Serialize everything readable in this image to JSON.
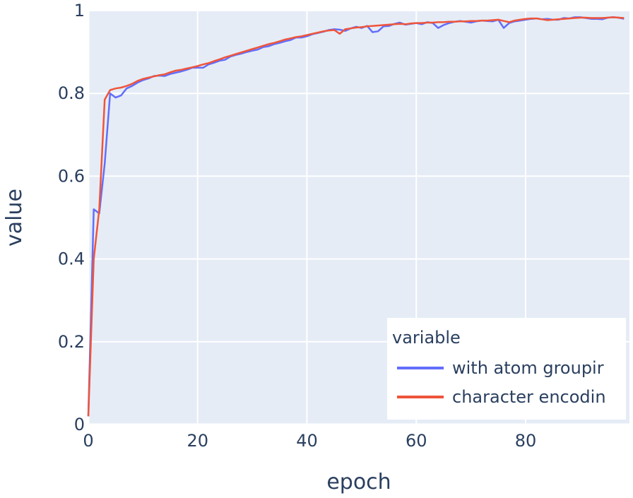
{
  "chart_data": {
    "type": "line",
    "xlabel": "epoch",
    "ylabel": "value",
    "xlim": [
      0,
      99
    ],
    "ylim": [
      0,
      1
    ],
    "xticks": [
      0,
      20,
      40,
      60,
      80
    ],
    "xtick_labels": [
      "0",
      "20",
      "40",
      "60",
      "80"
    ],
    "yticks": [
      0,
      0.2,
      0.4,
      0.6,
      0.8,
      1
    ],
    "ytick_labels": [
      "0",
      "0.2",
      "0.4",
      "0.6",
      "0.8",
      "1"
    ],
    "grid": true,
    "plot_background": "#e5ecf6",
    "grid_color": "#ffffff",
    "legend": {
      "title": "variable",
      "placement": "bottom-right"
    },
    "series": [
      {
        "name": "with atom groupir",
        "color": "#636efa",
        "x": [
          0,
          1,
          2,
          3,
          4,
          5,
          6,
          7,
          8,
          9,
          10,
          11,
          12,
          13,
          14,
          15,
          16,
          17,
          18,
          19,
          20,
          21,
          22,
          23,
          24,
          25,
          26,
          27,
          28,
          29,
          30,
          31,
          32,
          33,
          34,
          35,
          36,
          37,
          38,
          39,
          40,
          41,
          42,
          43,
          44,
          45,
          46,
          47,
          48,
          49,
          50,
          51,
          52,
          53,
          54,
          55,
          56,
          57,
          58,
          59,
          60,
          61,
          62,
          63,
          64,
          65,
          66,
          67,
          68,
          69,
          70,
          71,
          72,
          73,
          74,
          75,
          76,
          77,
          78,
          79,
          80,
          81,
          82,
          83,
          84,
          85,
          86,
          87,
          88,
          89,
          90,
          91,
          92,
          93,
          94,
          95,
          96,
          97,
          98
        ],
        "y": [
          0.02,
          0.52,
          0.51,
          0.63,
          0.8,
          0.79,
          0.795,
          0.812,
          0.818,
          0.826,
          0.832,
          0.836,
          0.842,
          0.843,
          0.842,
          0.847,
          0.85,
          0.853,
          0.857,
          0.862,
          0.862,
          0.862,
          0.87,
          0.874,
          0.879,
          0.881,
          0.889,
          0.893,
          0.896,
          0.9,
          0.903,
          0.906,
          0.912,
          0.914,
          0.919,
          0.922,
          0.926,
          0.929,
          0.935,
          0.935,
          0.938,
          0.943,
          0.946,
          0.949,
          0.953,
          0.955,
          0.954,
          0.951,
          0.957,
          0.961,
          0.958,
          0.963,
          0.948,
          0.95,
          0.962,
          0.963,
          0.968,
          0.971,
          0.966,
          0.968,
          0.97,
          0.967,
          0.972,
          0.97,
          0.958,
          0.965,
          0.97,
          0.973,
          0.975,
          0.973,
          0.971,
          0.974,
          0.976,
          0.975,
          0.974,
          0.978,
          0.958,
          0.97,
          0.974,
          0.976,
          0.978,
          0.98,
          0.981,
          0.979,
          0.98,
          0.978,
          0.978,
          0.982,
          0.981,
          0.984,
          0.984,
          0.982,
          0.98,
          0.98,
          0.979,
          0.983,
          0.984,
          0.983,
          0.98
        ]
      },
      {
        "name": "character encodin",
        "color": "#ef553b",
        "x": [
          0,
          1,
          2,
          3,
          4,
          5,
          6,
          7,
          8,
          9,
          10,
          11,
          12,
          13,
          14,
          15,
          16,
          17,
          18,
          19,
          20,
          21,
          22,
          23,
          24,
          25,
          26,
          27,
          28,
          29,
          30,
          31,
          32,
          33,
          34,
          35,
          36,
          37,
          38,
          39,
          40,
          41,
          42,
          43,
          44,
          45,
          46,
          47,
          48,
          49,
          50,
          51,
          52,
          53,
          54,
          55,
          56,
          57,
          58,
          59,
          60,
          61,
          62,
          63,
          64,
          65,
          66,
          67,
          68,
          69,
          70,
          71,
          72,
          73,
          74,
          75,
          76,
          77,
          78,
          79,
          80,
          81,
          82,
          83,
          84,
          85,
          86,
          87,
          88,
          89,
          90,
          91,
          92,
          93,
          94,
          95,
          96,
          97,
          98
        ],
        "y": [
          0.02,
          0.4,
          0.52,
          0.785,
          0.808,
          0.812,
          0.814,
          0.818,
          0.823,
          0.83,
          0.835,
          0.838,
          0.841,
          0.844,
          0.846,
          0.851,
          0.855,
          0.857,
          0.86,
          0.863,
          0.866,
          0.87,
          0.873,
          0.878,
          0.882,
          0.887,
          0.891,
          0.895,
          0.899,
          0.903,
          0.907,
          0.911,
          0.915,
          0.919,
          0.922,
          0.926,
          0.93,
          0.933,
          0.936,
          0.938,
          0.941,
          0.944,
          0.947,
          0.95,
          0.952,
          0.953,
          0.944,
          0.955,
          0.957,
          0.959,
          0.96,
          0.962,
          0.963,
          0.964,
          0.965,
          0.966,
          0.967,
          0.968,
          0.967,
          0.969,
          0.97,
          0.97,
          0.971,
          0.971,
          0.972,
          0.972,
          0.973,
          0.973,
          0.974,
          0.974,
          0.975,
          0.975,
          0.976,
          0.976,
          0.977,
          0.978,
          0.975,
          0.972,
          0.976,
          0.978,
          0.98,
          0.981,
          0.981,
          0.979,
          0.977,
          0.978,
          0.979,
          0.98,
          0.981,
          0.982,
          0.983,
          0.983,
          0.982,
          0.982,
          0.982,
          0.983,
          0.984,
          0.983,
          0.982
        ]
      }
    ]
  }
}
